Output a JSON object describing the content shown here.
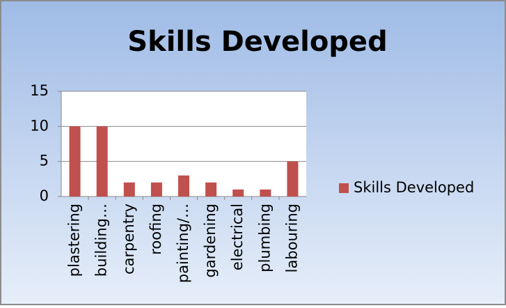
{
  "chart_data": {
    "type": "bar",
    "title": "Skills Developed",
    "categories": [
      "plastering",
      "building…",
      "carpentry",
      "roofing",
      "painting/…",
      "gardening",
      "electrical",
      "plumbing",
      "labouring"
    ],
    "series": [
      {
        "name": "Skills Developed",
        "color": "#c0504d",
        "values": [
          10,
          10,
          2,
          2,
          3,
          2,
          1,
          1,
          5
        ]
      }
    ],
    "ylim": [
      0,
      15
    ],
    "yticks": [
      0,
      5,
      10,
      15
    ],
    "grid": true,
    "legend": "right"
  }
}
